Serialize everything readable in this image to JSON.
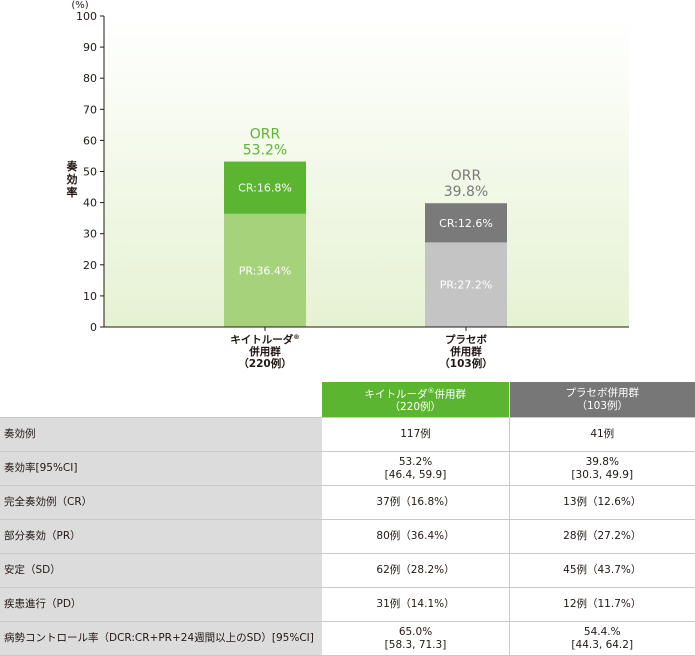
{
  "chart_data": {
    "type": "bar",
    "stacked": true,
    "y_unit": "(%)",
    "ylabel": "奏効率",
    "ylim": [
      0,
      100
    ],
    "yticks": [
      0,
      10,
      20,
      30,
      40,
      50,
      60,
      70,
      80,
      90,
      100
    ],
    "grid": false,
    "background": "light green gradient",
    "categories": [
      {
        "lines": [
          "キイトルーダ",
          "併用群",
          "（220例）"
        ],
        "superscript": "®"
      },
      {
        "lines": [
          "プラセボ",
          "併用群",
          "（103例）"
        ]
      }
    ],
    "bars": [
      {
        "segments": [
          {
            "name": "PR",
            "value": 36.4,
            "label": "PR:36.4%",
            "color": "#a5d27a"
          },
          {
            "name": "CR",
            "value": 16.8,
            "label": "CR:16.8%",
            "color": "#5bb531"
          }
        ],
        "total_label": {
          "title": "ORR",
          "value": "53.2%",
          "color": "#5bb531"
        }
      },
      {
        "segments": [
          {
            "name": "PR",
            "value": 27.2,
            "label": "PR:27.2%",
            "color": "#c4c4c4"
          },
          {
            "name": "CR",
            "value": 12.6,
            "label": "CR:12.6%",
            "color": "#7a7a7a"
          }
        ],
        "total_label": {
          "title": "ORR",
          "value": "39.8%",
          "color": "#7a7a7a"
        }
      }
    ]
  },
  "table": {
    "headers": {
      "keytruda": {
        "name": "キイトルーダ",
        "sup": "®",
        "suffix": "併用群",
        "n": "（220例）",
        "color": "#5bb531"
      },
      "placebo": {
        "line1": "プラセボ併用群",
        "n": "（103例）",
        "color": "#777777"
      }
    },
    "rows": [
      {
        "label": "奏効例",
        "keytruda": [
          "117例"
        ],
        "placebo": [
          "41例"
        ]
      },
      {
        "label": "奏効率[95%CI]",
        "keytruda": [
          "53.2%",
          "[46.4, 59.9]"
        ],
        "placebo": [
          "39.8%",
          "[30.3, 49.9]"
        ]
      },
      {
        "label": "完全奏効例（CR）",
        "keytruda": [
          "37例（16.8%）"
        ],
        "placebo": [
          "13例（12.6%）"
        ]
      },
      {
        "label": "部分奏効（PR）",
        "keytruda": [
          "80例（36.4%）"
        ],
        "placebo": [
          "28例（27.2%）"
        ]
      },
      {
        "label": "安定（SD）",
        "keytruda": [
          "62例（28.2%）"
        ],
        "placebo": [
          "45例（43.7%）"
        ]
      },
      {
        "label": "疾患進行（PD）",
        "keytruda": [
          "31例（14.1%）"
        ],
        "placebo": [
          "12例（11.7%）"
        ]
      },
      {
        "label": "病勢コントロール率（DCR:CR+PR+24週間以上のSD）[95%CI]",
        "keytruda": [
          "65.0%",
          "[58.3, 71.3]"
        ],
        "placebo": [
          "54.4.%",
          "[44.3, 64.2]"
        ]
      }
    ]
  }
}
